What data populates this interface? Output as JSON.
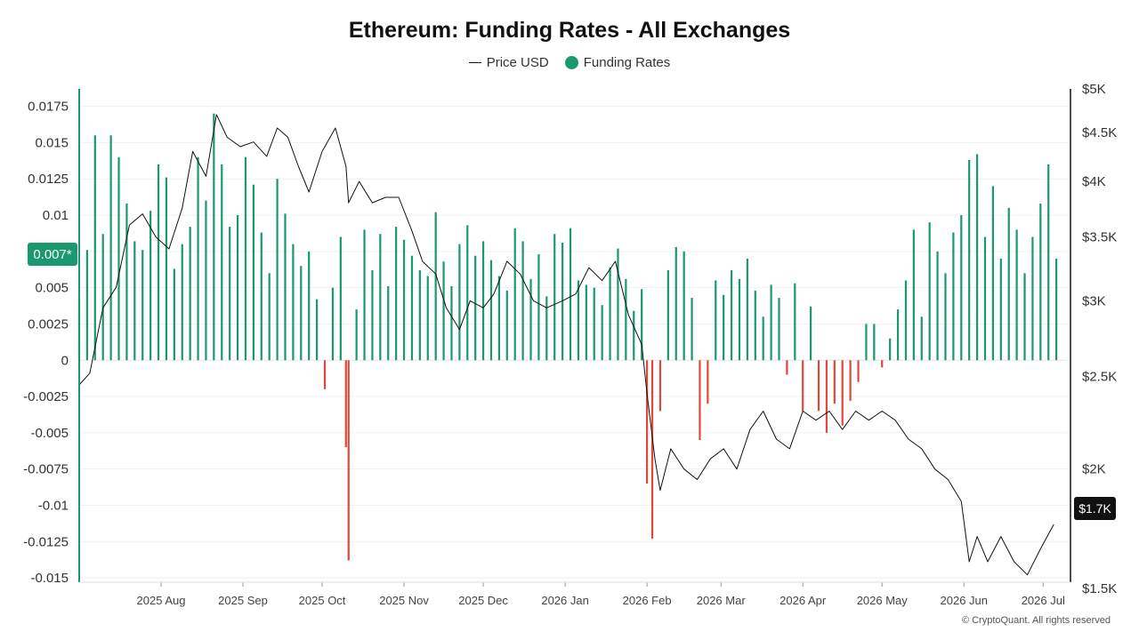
{
  "chart_data": {
    "type": "bar",
    "title": "Ethereum: Funding Rates - All Exchanges",
    "legend": {
      "placement": "top-center",
      "items": [
        {
          "name": "Price USD",
          "marker": "line",
          "color": "#111111"
        },
        {
          "name": "Funding Rates",
          "marker": "dot",
          "color": "#1a9a6c"
        }
      ]
    },
    "colors": {
      "positive": "#1a9a6c",
      "negative": "#e0483a",
      "price": "#111111",
      "axis": "#1a9a6c"
    },
    "x_axis": {
      "ticks": [
        "2025 Aug",
        "2025 Sep",
        "2025 Oct",
        "2025 Nov",
        "2025 Dec",
        "2026 Jan",
        "2026 Feb",
        "2026 Mar",
        "2026 Apr",
        "2026 May",
        "2026 Jun",
        "2026 Jul"
      ],
      "range": [
        "2025-07-01",
        "2026-07-10"
      ]
    },
    "y_left": {
      "name": "Funding Rates",
      "ticks": [
        "0.0175",
        "0.015",
        "0.0125",
        "0.01",
        "0.0075",
        "0.005",
        "0.0025",
        "0",
        "-0.0025",
        "-0.005",
        "-0.0075",
        "-0.01",
        "-0.0125",
        "-0.015"
      ],
      "tick_values": [
        0.0175,
        0.015,
        0.0125,
        0.01,
        0.0075,
        0.005,
        0.0025,
        0,
        -0.0025,
        -0.005,
        -0.0075,
        -0.01,
        -0.0125,
        -0.015
      ],
      "range": [
        -0.0153,
        0.0187
      ],
      "current": "0.007*"
    },
    "y_right": {
      "name": "Price USD",
      "scale": "log",
      "ticks": [
        "$5K",
        "$4.5K",
        "$4K",
        "$3.5K",
        "$3K",
        "$2.5K",
        "$2K",
        "$1.5K"
      ],
      "tick_values": [
        5000,
        4500,
        4000,
        3500,
        3000,
        2500,
        2000,
        1500
      ],
      "range": [
        1500,
        5000
      ],
      "current": "$1.7K"
    },
    "funding_series": {
      "name": "Funding Rates",
      "x": [
        "2025-07-01",
        "2025-07-04",
        "2025-07-07",
        "2025-07-10",
        "2025-07-13",
        "2025-07-16",
        "2025-07-19",
        "2025-07-22",
        "2025-07-25",
        "2025-07-28",
        "2025-07-31",
        "2025-08-03",
        "2025-08-06",
        "2025-08-09",
        "2025-08-12",
        "2025-08-15",
        "2025-08-18",
        "2025-08-21",
        "2025-08-24",
        "2025-08-27",
        "2025-08-30",
        "2025-09-02",
        "2025-09-05",
        "2025-09-08",
        "2025-09-11",
        "2025-09-14",
        "2025-09-17",
        "2025-09-20",
        "2025-09-23",
        "2025-09-26",
        "2025-09-29",
        "2025-10-02",
        "2025-10-05",
        "2025-10-08",
        "2025-10-10",
        "2025-10-11",
        "2025-10-14",
        "2025-10-17",
        "2025-10-20",
        "2025-10-23",
        "2025-10-26",
        "2025-10-29",
        "2025-11-01",
        "2025-11-04",
        "2025-11-07",
        "2025-11-10",
        "2025-11-13",
        "2025-11-16",
        "2025-11-19",
        "2025-11-22",
        "2025-11-25",
        "2025-11-28",
        "2025-12-01",
        "2025-12-04",
        "2025-12-07",
        "2025-12-10",
        "2025-12-13",
        "2025-12-16",
        "2025-12-19",
        "2025-12-22",
        "2025-12-25",
        "2025-12-28",
        "2025-12-31",
        "2026-01-03",
        "2026-01-06",
        "2026-01-09",
        "2026-01-12",
        "2026-01-15",
        "2026-01-18",
        "2026-01-21",
        "2026-01-24",
        "2026-01-27",
        "2026-01-30",
        "2026-02-01",
        "2026-02-03",
        "2026-02-06",
        "2026-02-09",
        "2026-02-12",
        "2026-02-15",
        "2026-02-18",
        "2026-02-21",
        "2026-02-24",
        "2026-02-27",
        "2026-03-02",
        "2026-03-05",
        "2026-03-08",
        "2026-03-11",
        "2026-03-14",
        "2026-03-17",
        "2026-03-20",
        "2026-03-23",
        "2026-03-26",
        "2026-03-29",
        "2026-04-01",
        "2026-04-04",
        "2026-04-07",
        "2026-04-10",
        "2026-04-13",
        "2026-04-16",
        "2026-04-19",
        "2026-04-22",
        "2026-04-25",
        "2026-04-28",
        "2026-05-01",
        "2026-05-04",
        "2026-05-07",
        "2026-05-10",
        "2026-05-13",
        "2026-05-16",
        "2026-05-19",
        "2026-05-22",
        "2026-05-25",
        "2026-05-28",
        "2026-05-31",
        "2026-06-03",
        "2026-06-06",
        "2026-06-09",
        "2026-06-12",
        "2026-06-15",
        "2026-06-18",
        "2026-06-21",
        "2026-06-24",
        "2026-06-27",
        "2026-06-30",
        "2026-07-03",
        "2026-07-06"
      ],
      "values": [
        0.0043,
        0.0076,
        0.0155,
        0.0087,
        0.0155,
        0.014,
        0.0108,
        0.0082,
        0.0076,
        0.0103,
        0.0135,
        0.0126,
        0.0063,
        0.008,
        0.0092,
        0.014,
        0.011,
        0.017,
        0.0135,
        0.0092,
        0.01,
        0.014,
        0.0121,
        0.0088,
        0.006,
        0.0125,
        0.0101,
        0.008,
        0.0065,
        0.0075,
        0.0042,
        -0.002,
        0.005,
        0.0085,
        -0.006,
        -0.0138,
        0.0035,
        0.009,
        0.0062,
        0.0087,
        0.0051,
        0.0092,
        0.0083,
        0.0072,
        0.0062,
        0.0058,
        0.0102,
        0.0068,
        0.0051,
        0.008,
        0.0093,
        0.0072,
        0.0082,
        0.0069,
        0.0058,
        0.0048,
        0.0091,
        0.0082,
        0.0056,
        0.0073,
        0.0044,
        0.0087,
        0.0081,
        0.0091,
        0.0055,
        0.0052,
        0.005,
        0.0038,
        0.0064,
        0.0077,
        0.0056,
        0.0034,
        0.0049,
        -0.0085,
        -0.0123,
        -0.0035,
        0.0062,
        0.0078,
        0.0075,
        0.0043,
        -0.0055,
        -0.003,
        0.0055,
        0.0045,
        0.0062,
        0.0056,
        0.007,
        0.0048,
        0.003,
        0.0052,
        0.0043,
        -0.001,
        0.0053,
        -0.0035,
        0.0037,
        -0.0035,
        -0.005,
        -0.003,
        -0.0045,
        -0.0028,
        -0.0015,
        0.0025,
        0.0025,
        -0.0005,
        0.0015,
        0.0035,
        0.0055,
        0.009,
        0.003,
        0.0095,
        0.0075,
        0.006,
        0.0088,
        0.01,
        0.0138,
        0.0142,
        0.0085,
        0.012,
        0.007,
        0.0105,
        0.009,
        0.006,
        0.0085,
        0.0108,
        0.0135,
        0.007
      ]
    },
    "price_series": {
      "name": "Price USD",
      "x": [
        "2025-07-01",
        "2025-07-05",
        "2025-07-10",
        "2025-07-15",
        "2025-07-20",
        "2025-07-25",
        "2025-07-30",
        "2025-08-04",
        "2025-08-09",
        "2025-08-13",
        "2025-08-18",
        "2025-08-22",
        "2025-08-26",
        "2025-08-31",
        "2025-09-05",
        "2025-09-10",
        "2025-09-14",
        "2025-09-18",
        "2025-09-22",
        "2025-09-26",
        "2025-10-01",
        "2025-10-06",
        "2025-10-10",
        "2025-10-11",
        "2025-10-15",
        "2025-10-20",
        "2025-10-25",
        "2025-10-30",
        "2025-11-04",
        "2025-11-08",
        "2025-11-13",
        "2025-11-17",
        "2025-11-22",
        "2025-11-26",
        "2025-12-01",
        "2025-12-05",
        "2025-12-10",
        "2025-12-15",
        "2025-12-20",
        "2025-12-25",
        "2025-12-31",
        "2026-01-05",
        "2026-01-10",
        "2026-01-15",
        "2026-01-20",
        "2026-01-25",
        "2026-01-30",
        "2026-02-01",
        "2026-02-04",
        "2026-02-06",
        "2026-02-10",
        "2026-02-15",
        "2026-02-20",
        "2026-02-25",
        "2026-03-02",
        "2026-03-07",
        "2026-03-12",
        "2026-03-17",
        "2026-03-22",
        "2026-03-27",
        "2026-04-01",
        "2026-04-06",
        "2026-04-11",
        "2026-04-16",
        "2026-04-21",
        "2026-04-26",
        "2026-05-01",
        "2026-05-06",
        "2026-05-11",
        "2026-05-16",
        "2026-05-21",
        "2026-05-26",
        "2026-05-31",
        "2026-06-03",
        "2026-06-06",
        "2026-06-10",
        "2026-06-15",
        "2026-06-20",
        "2026-06-25",
        "2026-06-30",
        "2026-07-05"
      ],
      "values": [
        2450,
        2520,
        2950,
        3100,
        3600,
        3700,
        3500,
        3400,
        3750,
        4300,
        4050,
        4700,
        4450,
        4350,
        4400,
        4250,
        4550,
        4450,
        4150,
        3900,
        4300,
        4550,
        4150,
        3800,
        4000,
        3800,
        3850,
        3850,
        3550,
        3300,
        3200,
        2950,
        2800,
        3000,
        2950,
        3050,
        3300,
        3200,
        3000,
        2950,
        3000,
        3050,
        3250,
        3150,
        3300,
        2900,
        2700,
        2400,
        2050,
        1900,
        2100,
        2000,
        1950,
        2050,
        2100,
        2000,
        2200,
        2300,
        2150,
        2100,
        2300,
        2250,
        2300,
        2200,
        2300,
        2250,
        2300,
        2250,
        2150,
        2100,
        2000,
        1950,
        1850,
        1600,
        1700,
        1600,
        1700,
        1600,
        1550,
        1650,
        1750
      ]
    }
  },
  "footer": {
    "copyright": "© CryptoQuant. All rights reserved"
  }
}
